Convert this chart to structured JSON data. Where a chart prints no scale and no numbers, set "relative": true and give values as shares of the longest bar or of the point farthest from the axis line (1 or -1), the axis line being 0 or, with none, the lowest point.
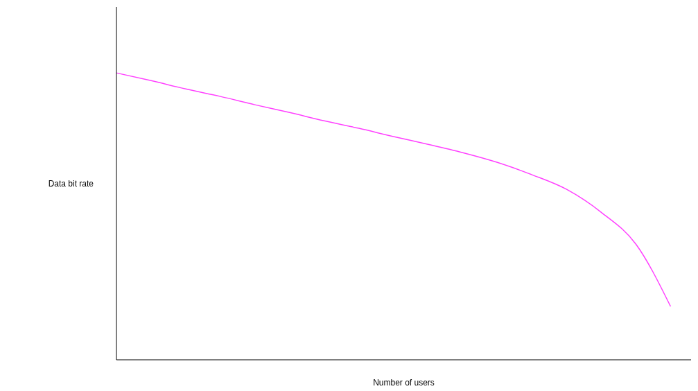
{
  "chart_data": {
    "type": "line",
    "relative": true,
    "xlabel": "Number of users",
    "ylabel": "Data bit rate",
    "categories": [
      null,
      null,
      null,
      null,
      null,
      null,
      null,
      null,
      null,
      null,
      null,
      null,
      null,
      null,
      null,
      null,
      null
    ],
    "series": [
      {
        "color": "#ff40ff",
        "values": [
          1.0,
          0.973,
          0.944,
          0.918,
          0.889,
          0.862,
          0.833,
          0.807,
          0.778,
          0.751,
          0.722,
          0.688,
          0.645,
          0.594,
          0.514,
          0.403,
          0.186
        ]
      }
    ]
  }
}
